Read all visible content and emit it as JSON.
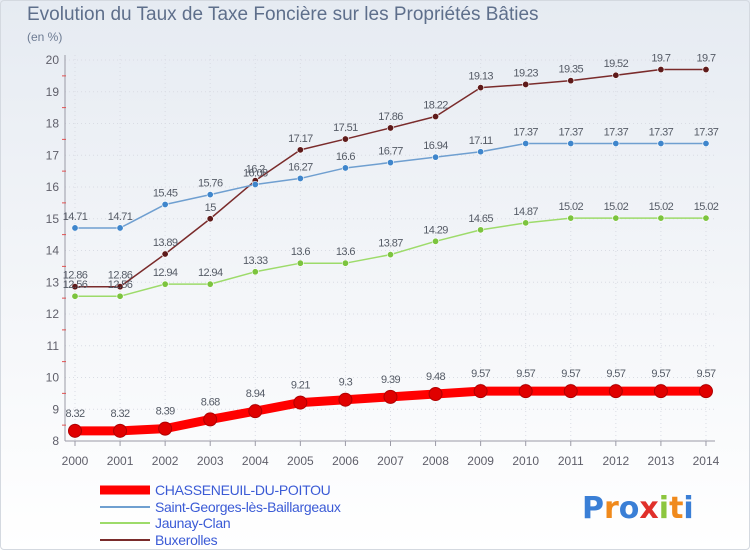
{
  "title": "Evolution du Taux de Taxe Foncière sur les Propriétés Bâties",
  "subtitle": "(en %)",
  "chart_data": {
    "type": "line",
    "x": [
      2000,
      2001,
      2002,
      2003,
      2004,
      2005,
      2006,
      2007,
      2008,
      2009,
      2010,
      2011,
      2012,
      2013,
      2014
    ],
    "ylim": [
      8,
      20
    ],
    "yticks": [
      8,
      9,
      10,
      11,
      12,
      13,
      14,
      15,
      16,
      17,
      18,
      19,
      20
    ],
    "grid": true,
    "legend_position": "bottom-left",
    "series": [
      {
        "name": "CHASSENEUIL-DU-POITOU",
        "color": "#ff0000",
        "marker_color": "#e00000",
        "emphasis": true,
        "values": [
          8.32,
          8.32,
          8.39,
          8.68,
          8.94,
          9.21,
          9.3,
          9.39,
          9.48,
          9.57,
          9.57,
          9.57,
          9.57,
          9.57,
          9.57
        ]
      },
      {
        "name": "Saint-Georges-lès-Baillargeaux",
        "color": "#6f9fd0",
        "marker_color": "#3f86cc",
        "emphasis": false,
        "values": [
          14.71,
          14.71,
          15.45,
          15.76,
          16.08,
          16.27,
          16.6,
          16.77,
          16.94,
          17.11,
          17.37,
          17.37,
          17.37,
          17.37,
          17.37
        ]
      },
      {
        "name": "Jaunay-Clan",
        "color": "#9ddb6a",
        "marker_color": "#7cc43e",
        "emphasis": false,
        "values": [
          12.56,
          12.56,
          12.94,
          12.94,
          13.33,
          13.6,
          13.6,
          13.87,
          14.29,
          14.65,
          14.87,
          15.02,
          15.02,
          15.02,
          15.02
        ]
      },
      {
        "name": "Buxerolles",
        "color": "#7a2b2b",
        "marker_color": "#5e1a1a",
        "emphasis": false,
        "values": [
          12.86,
          12.86,
          13.89,
          15,
          16.2,
          17.17,
          17.51,
          17.86,
          18.22,
          19.13,
          19.23,
          19.35,
          19.52,
          19.7,
          19.7
        ]
      }
    ]
  },
  "logo": {
    "text": "Proxiti",
    "letter_colors": [
      "#3a7fd6",
      "#f08a1c",
      "#3a7fd6",
      "#e0302a",
      "#8cc63e",
      "#f08a1c",
      "#3a7fd6"
    ]
  },
  "colors": {
    "title": "#5e6f8b",
    "axis": "#9a9aa6",
    "grid": "#d9dce4",
    "axis_minor_tick": "#e05050",
    "legend_text": "#3b5bd6"
  }
}
